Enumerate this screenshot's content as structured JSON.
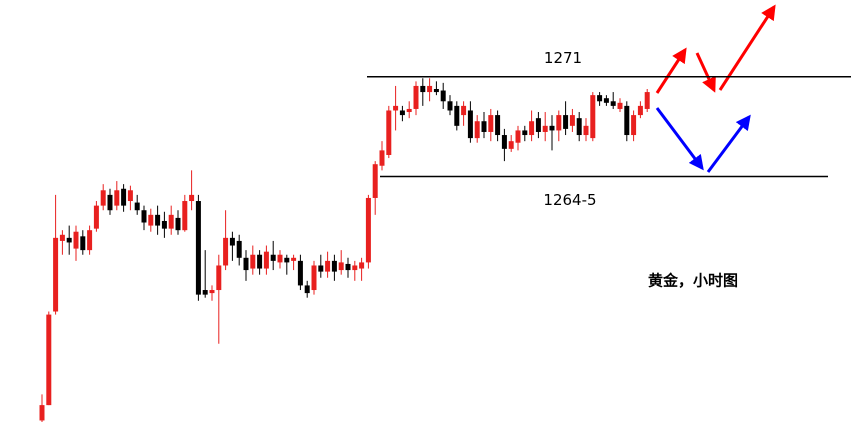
{
  "chart_data": {
    "type": "candlestick",
    "ylim": [
      1248.5,
      1276
    ],
    "up_color": "#e8201f",
    "down_color": "#000000",
    "levels": [
      {
        "value": 1271,
        "label": "1271"
      },
      {
        "value": 1264.5,
        "label": "1264-5"
      }
    ],
    "annotation": "黄金，小时图",
    "ohlc": [
      [
        1248.6,
        1250.3,
        1248.5,
        1249.6
      ],
      [
        1249.6,
        1255.7,
        1249.6,
        1255.5
      ],
      [
        1255.7,
        1263.3,
        1255.5,
        1260.5
      ],
      [
        1260.3,
        1261.0,
        1259.4,
        1260.7
      ],
      [
        1260.5,
        1261.3,
        1259.4,
        1260.2
      ],
      [
        1259.8,
        1261.3,
        1259.0,
        1260.9
      ],
      [
        1260.6,
        1261.0,
        1259.4,
        1259.7
      ],
      [
        1259.7,
        1261.3,
        1259.4,
        1261.0
      ],
      [
        1261.1,
        1262.9,
        1260.9,
        1262.6
      ],
      [
        1262.6,
        1264.0,
        1262.3,
        1263.6
      ],
      [
        1263.3,
        1263.7,
        1262.0,
        1262.3
      ],
      [
        1262.6,
        1264.2,
        1262.3,
        1263.6
      ],
      [
        1263.7,
        1264.0,
        1262.2,
        1262.6
      ],
      [
        1262.9,
        1263.9,
        1262.3,
        1263.6
      ],
      [
        1262.8,
        1263.3,
        1262.0,
        1262.3
      ],
      [
        1262.3,
        1262.6,
        1261.0,
        1261.5
      ],
      [
        1261.3,
        1262.4,
        1260.9,
        1262.0
      ],
      [
        1262.0,
        1262.6,
        1260.7,
        1261.3
      ],
      [
        1261.6,
        1262.2,
        1260.5,
        1261.1
      ],
      [
        1261.1,
        1262.6,
        1260.7,
        1262.0
      ],
      [
        1261.8,
        1262.3,
        1260.7,
        1261.0
      ],
      [
        1261.0,
        1263.3,
        1260.9,
        1262.9
      ],
      [
        1262.9,
        1264.9,
        1262.3,
        1263.3
      ],
      [
        1262.9,
        1263.3,
        1256.4,
        1256.8
      ],
      [
        1257.1,
        1259.7,
        1256.6,
        1256.8
      ],
      [
        1256.9,
        1257.4,
        1256.4,
        1257.1
      ],
      [
        1257.1,
        1259.4,
        1253.6,
        1258.7
      ],
      [
        1258.7,
        1262.3,
        1258.4,
        1260.5
      ],
      [
        1260.5,
        1260.9,
        1259.0,
        1260.0
      ],
      [
        1260.3,
        1260.7,
        1258.7,
        1259.2
      ],
      [
        1259.2,
        1259.7,
        1257.7,
        1258.4
      ],
      [
        1258.5,
        1260.0,
        1258.1,
        1259.4
      ],
      [
        1259.4,
        1259.7,
        1258.1,
        1258.5
      ],
      [
        1258.5,
        1260.0,
        1258.1,
        1259.6
      ],
      [
        1259.4,
        1260.3,
        1258.4,
        1259.0
      ],
      [
        1258.9,
        1259.7,
        1258.5,
        1259.4
      ],
      [
        1259.2,
        1259.4,
        1258.1,
        1258.9
      ],
      [
        1259.0,
        1259.4,
        1258.4,
        1259.2
      ],
      [
        1259.0,
        1259.4,
        1257.1,
        1257.4
      ],
      [
        1257.4,
        1257.7,
        1256.6,
        1256.9
      ],
      [
        1257.1,
        1259.0,
        1256.8,
        1258.7
      ],
      [
        1258.7,
        1259.4,
        1257.9,
        1258.3
      ],
      [
        1258.3,
        1259.6,
        1257.9,
        1259.0
      ],
      [
        1259.0,
        1259.4,
        1257.7,
        1258.3
      ],
      [
        1258.4,
        1259.7,
        1258.1,
        1258.9
      ],
      [
        1258.8,
        1259.2,
        1257.9,
        1258.4
      ],
      [
        1258.4,
        1259.0,
        1257.7,
        1258.7
      ],
      [
        1258.5,
        1259.2,
        1257.7,
        1258.9
      ],
      [
        1258.9,
        1263.3,
        1258.5,
        1263.1
      ],
      [
        1263.1,
        1265.5,
        1262.0,
        1265.3
      ],
      [
        1265.2,
        1266.8,
        1264.9,
        1266.2
      ],
      [
        1265.9,
        1269.1,
        1265.7,
        1268.8
      ],
      [
        1268.8,
        1270.4,
        1267.5,
        1269.1
      ],
      [
        1268.8,
        1269.1,
        1268.1,
        1268.5
      ],
      [
        1268.7,
        1269.4,
        1268.3,
        1268.9
      ],
      [
        1268.9,
        1270.7,
        1268.5,
        1270.4
      ],
      [
        1270.4,
        1270.9,
        1269.1,
        1270.0
      ],
      [
        1270.0,
        1270.9,
        1269.4,
        1270.4
      ],
      [
        1270.2,
        1270.7,
        1269.8,
        1270.0
      ],
      [
        1270.1,
        1270.6,
        1268.9,
        1269.4
      ],
      [
        1269.4,
        1269.8,
        1268.5,
        1268.8
      ],
      [
        1269.1,
        1269.4,
        1267.5,
        1267.8
      ],
      [
        1268.5,
        1269.4,
        1267.8,
        1269.1
      ],
      [
        1268.8,
        1269.4,
        1266.7,
        1267.0
      ],
      [
        1267.0,
        1268.5,
        1266.7,
        1268.1
      ],
      [
        1268.1,
        1268.7,
        1267.0,
        1267.4
      ],
      [
        1267.4,
        1268.9,
        1266.8,
        1268.5
      ],
      [
        1268.5,
        1268.8,
        1266.8,
        1267.2
      ],
      [
        1267.2,
        1267.6,
        1265.5,
        1266.3
      ],
      [
        1266.3,
        1267.2,
        1266.1,
        1266.8
      ],
      [
        1266.7,
        1267.8,
        1266.2,
        1267.5
      ],
      [
        1267.5,
        1267.8,
        1266.8,
        1267.2
      ],
      [
        1267.2,
        1268.8,
        1266.8,
        1268.1
      ],
      [
        1268.3,
        1268.7,
        1267.0,
        1267.4
      ],
      [
        1267.4,
        1268.7,
        1266.8,
        1267.8
      ],
      [
        1267.8,
        1268.5,
        1266.2,
        1267.5
      ],
      [
        1267.5,
        1268.8,
        1266.8,
        1268.5
      ],
      [
        1268.5,
        1269.4,
        1267.2,
        1267.6
      ],
      [
        1267.8,
        1268.9,
        1267.4,
        1268.5
      ],
      [
        1268.3,
        1268.7,
        1266.8,
        1267.2
      ],
      [
        1267.2,
        1268.3,
        1266.8,
        1267.8
      ],
      [
        1267.0,
        1270.0,
        1266.8,
        1269.8
      ],
      [
        1269.8,
        1270.0,
        1269.1,
        1269.4
      ],
      [
        1269.6,
        1269.8,
        1269.1,
        1269.3
      ],
      [
        1269.4,
        1270.0,
        1268.9,
        1269.1
      ],
      [
        1268.9,
        1269.6,
        1268.7,
        1269.3
      ],
      [
        1269.1,
        1269.4,
        1266.8,
        1267.2
      ],
      [
        1267.2,
        1268.8,
        1266.8,
        1268.5
      ],
      [
        1268.5,
        1269.4,
        1268.3,
        1269.1
      ],
      [
        1268.9,
        1270.2,
        1268.7,
        1270.0
      ]
    ]
  }
}
